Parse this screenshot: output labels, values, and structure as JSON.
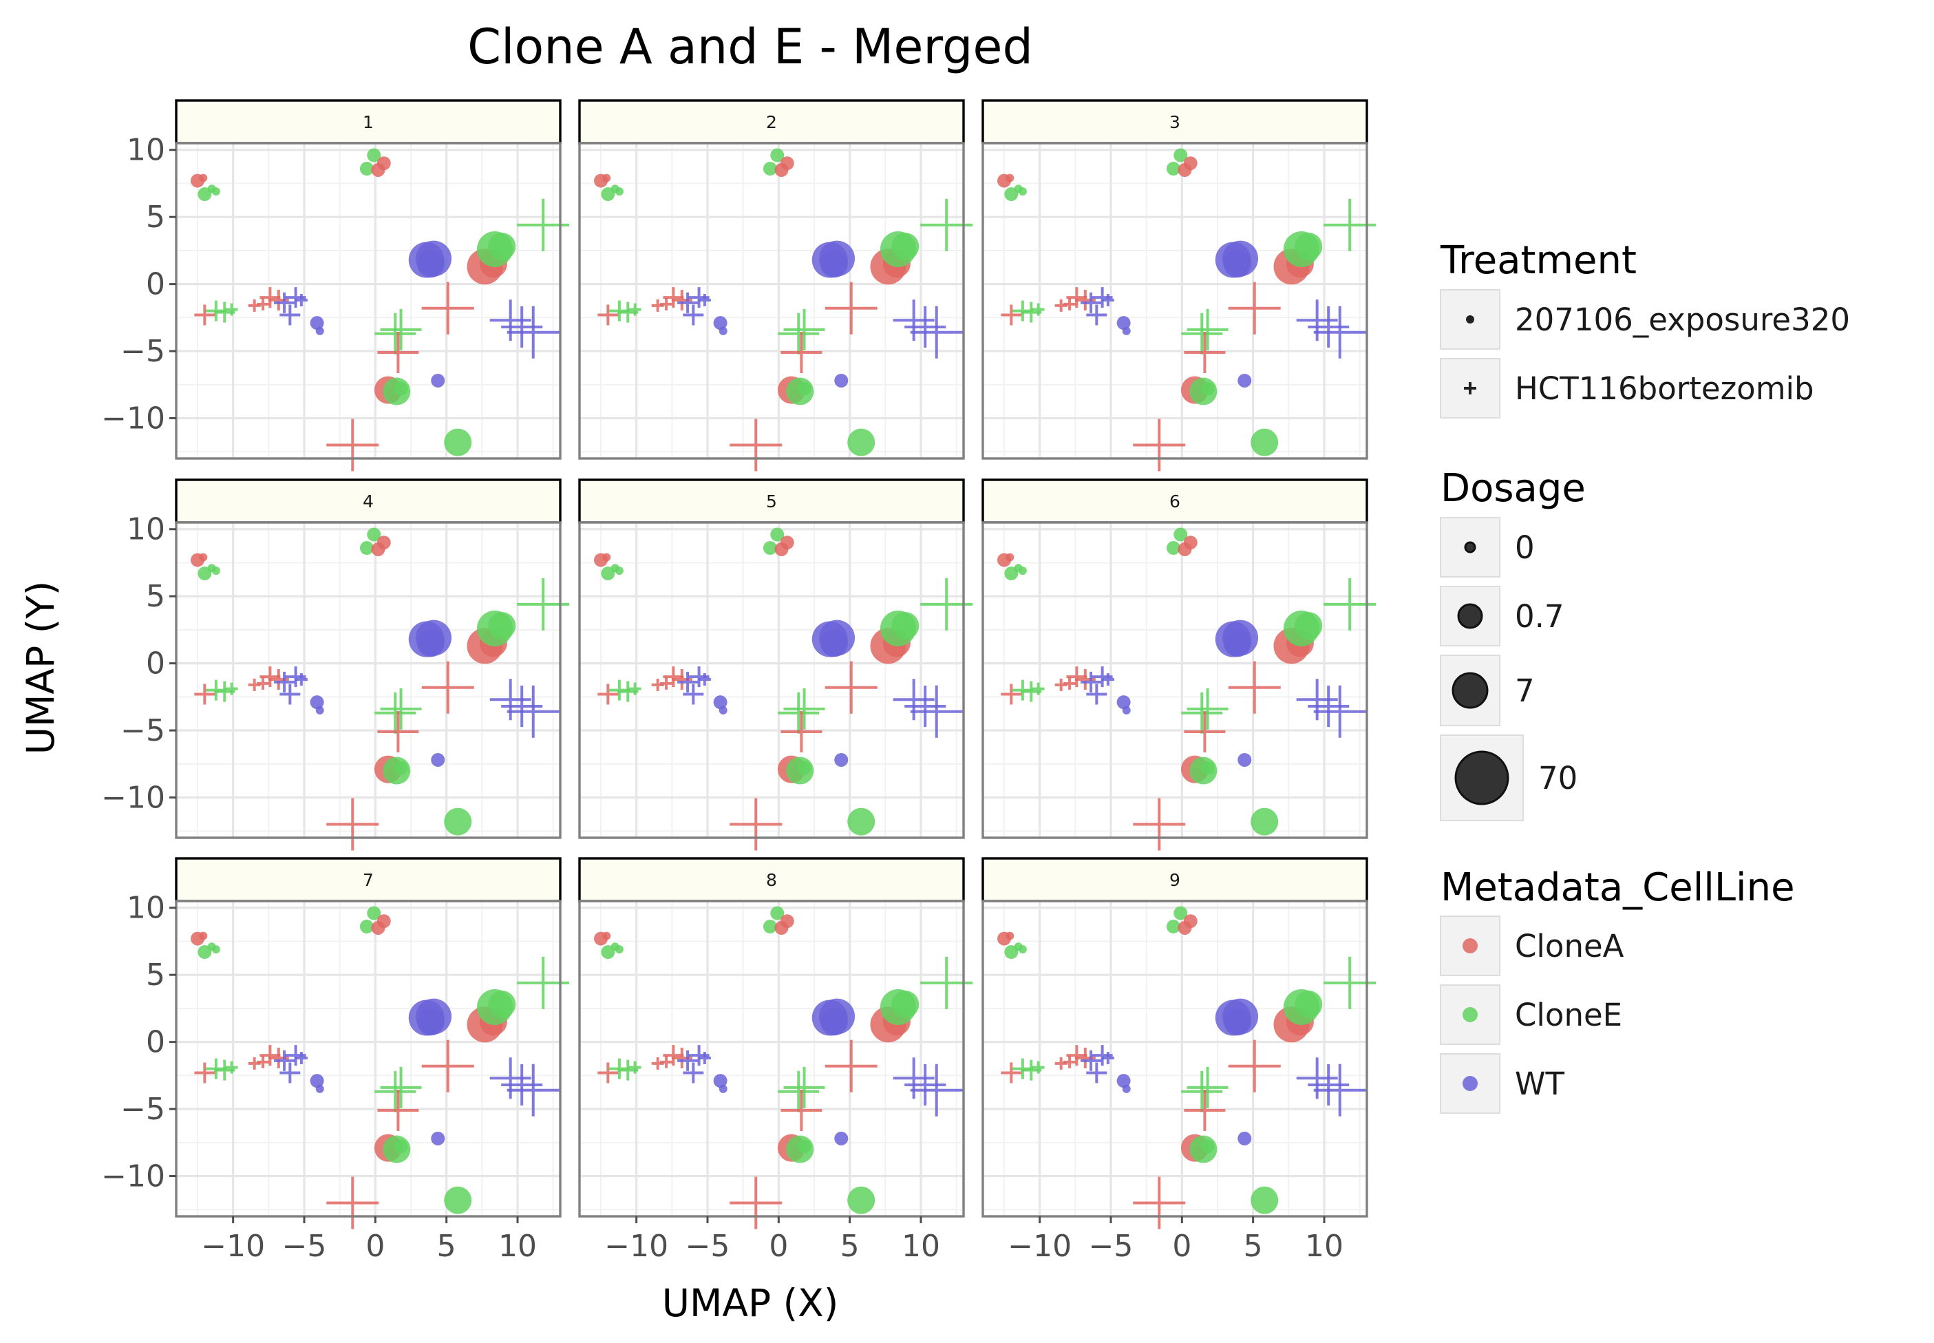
{
  "chart_data": {
    "type": "scatter",
    "title": "Clone A and E - Merged",
    "xlabel": "UMAP (X)",
    "ylabel": "UMAP (Y)",
    "xlim": [
      -14,
      13
    ],
    "ylim": [
      -13,
      10.5
    ],
    "xticks": [
      -10,
      -5,
      0,
      5,
      10
    ],
    "yticks": [
      10,
      5,
      0,
      -5,
      -10
    ],
    "xtick_labels": [
      "−10",
      "−5",
      "0",
      "5",
      "10"
    ],
    "ytick_labels": [
      "10",
      "5",
      "0",
      "−5",
      "−10"
    ],
    "grid": true,
    "facets": [
      "1",
      "2",
      "3",
      "4",
      "5",
      "6",
      "7",
      "8",
      "9"
    ],
    "legend_placement": "right",
    "legend": {
      "treatment": {
        "title": "Treatment",
        "items": [
          {
            "label": "207106_exposure320",
            "shape": "circle"
          },
          {
            "label": "HCT116bortezomib",
            "shape": "cross"
          }
        ]
      },
      "dosage": {
        "title": "Dosage",
        "items": [
          {
            "label": "0",
            "value": 0
          },
          {
            "label": "0.7",
            "value": 0.7
          },
          {
            "label": "7",
            "value": 7
          },
          {
            "label": "70",
            "value": 70
          }
        ]
      },
      "cellline": {
        "title": "Metadata_CellLine",
        "items": [
          {
            "label": "CloneA",
            "color": "#e06660"
          },
          {
            "label": "CloneE",
            "color": "#5fd35f"
          },
          {
            "label": "WT",
            "color": "#6a62d8"
          }
        ]
      }
    },
    "colors": {
      "CloneA": "#e06660",
      "CloneE": "#5fd35f",
      "WT": "#6a62d8"
    },
    "points": [
      {
        "x": -12.5,
        "y": 7.7,
        "line": "CloneA",
        "treatment": "207106_exposure320",
        "dose": 0.7
      },
      {
        "x": -12.1,
        "y": 7.9,
        "line": "CloneA",
        "treatment": "207106_exposure320",
        "dose": 0
      },
      {
        "x": -12.0,
        "y": 6.7,
        "line": "CloneE",
        "treatment": "207106_exposure320",
        "dose": 0.7
      },
      {
        "x": -11.5,
        "y": 7.1,
        "line": "CloneE",
        "treatment": "207106_exposure320",
        "dose": 0
      },
      {
        "x": -11.2,
        "y": 6.9,
        "line": "CloneE",
        "treatment": "207106_exposure320",
        "dose": 0
      },
      {
        "x": -0.6,
        "y": 8.6,
        "line": "CloneE",
        "treatment": "207106_exposure320",
        "dose": 0.7
      },
      {
        "x": -0.1,
        "y": 9.6,
        "line": "CloneE",
        "treatment": "207106_exposure320",
        "dose": 0.7
      },
      {
        "x": 0.2,
        "y": 8.5,
        "line": "CloneA",
        "treatment": "207106_exposure320",
        "dose": 0.7
      },
      {
        "x": 0.6,
        "y": 9.0,
        "line": "CloneA",
        "treatment": "207106_exposure320",
        "dose": 0.7
      },
      {
        "x": 3.6,
        "y": 1.8,
        "line": "WT",
        "treatment": "207106_exposure320",
        "dose": 70
      },
      {
        "x": 4.1,
        "y": 1.9,
        "line": "WT",
        "treatment": "207106_exposure320",
        "dose": 70
      },
      {
        "x": 3.9,
        "y": 1.5,
        "line": "WT",
        "treatment": "207106_exposure320",
        "dose": 7
      },
      {
        "x": 7.7,
        "y": 1.3,
        "line": "CloneA",
        "treatment": "207106_exposure320",
        "dose": 70
      },
      {
        "x": 8.3,
        "y": 1.5,
        "line": "CloneA",
        "treatment": "207106_exposure320",
        "dose": 7
      },
      {
        "x": 8.4,
        "y": 2.6,
        "line": "CloneE",
        "treatment": "207106_exposure320",
        "dose": 70
      },
      {
        "x": 8.9,
        "y": 2.8,
        "line": "CloneE",
        "treatment": "207106_exposure320",
        "dose": 7
      },
      {
        "x": -4.1,
        "y": -2.9,
        "line": "WT",
        "treatment": "207106_exposure320",
        "dose": 0.7
      },
      {
        "x": -3.9,
        "y": -3.5,
        "line": "WT",
        "treatment": "207106_exposure320",
        "dose": 0
      },
      {
        "x": 0.9,
        "y": -7.9,
        "line": "CloneA",
        "treatment": "207106_exposure320",
        "dose": 7
      },
      {
        "x": 1.2,
        "y": -8.3,
        "line": "CloneA",
        "treatment": "207106_exposure320",
        "dose": 0.7
      },
      {
        "x": 1.5,
        "y": -8.0,
        "line": "CloneE",
        "treatment": "207106_exposure320",
        "dose": 7
      },
      {
        "x": 1.8,
        "y": -7.8,
        "line": "CloneE",
        "treatment": "207106_exposure320",
        "dose": 0.7
      },
      {
        "x": 4.4,
        "y": -7.2,
        "line": "WT",
        "treatment": "207106_exposure320",
        "dose": 0.7
      },
      {
        "x": 5.8,
        "y": -11.8,
        "line": "CloneE",
        "treatment": "207106_exposure320",
        "dose": 7
      },
      {
        "x": -12.0,
        "y": -2.3,
        "line": "CloneA",
        "treatment": "HCT116bortezomib",
        "dose": 0.7
      },
      {
        "x": -11.2,
        "y": -2.0,
        "line": "CloneE",
        "treatment": "HCT116bortezomib",
        "dose": 0.7
      },
      {
        "x": -10.6,
        "y": -2.1,
        "line": "CloneE",
        "treatment": "HCT116bortezomib",
        "dose": 0.7
      },
      {
        "x": -10.1,
        "y": -1.9,
        "line": "CloneE",
        "treatment": "HCT116bortezomib",
        "dose": 0
      },
      {
        "x": -8.5,
        "y": -1.6,
        "line": "CloneA",
        "treatment": "HCT116bortezomib",
        "dose": 0
      },
      {
        "x": -7.9,
        "y": -1.5,
        "line": "CloneA",
        "treatment": "HCT116bortezomib",
        "dose": 0
      },
      {
        "x": -7.4,
        "y": -1.0,
        "line": "CloneA",
        "treatment": "HCT116bortezomib",
        "dose": 0.7
      },
      {
        "x": -6.8,
        "y": -1.2,
        "line": "CloneA",
        "treatment": "HCT116bortezomib",
        "dose": 0.7
      },
      {
        "x": -6.4,
        "y": -1.4,
        "line": "WT",
        "treatment": "HCT116bortezomib",
        "dose": 0.7
      },
      {
        "x": -6.0,
        "y": -2.3,
        "line": "WT",
        "treatment": "HCT116bortezomib",
        "dose": 0.7
      },
      {
        "x": -5.6,
        "y": -1.0,
        "line": "WT",
        "treatment": "HCT116bortezomib",
        "dose": 0.7
      },
      {
        "x": -5.2,
        "y": -1.2,
        "line": "WT",
        "treatment": "HCT116bortezomib",
        "dose": 0
      },
      {
        "x": 1.4,
        "y": -3.7,
        "line": "CloneE",
        "treatment": "HCT116bortezomib",
        "dose": 7
      },
      {
        "x": 1.8,
        "y": -3.4,
        "line": "CloneE",
        "treatment": "HCT116bortezomib",
        "dose": 7
      },
      {
        "x": 1.6,
        "y": -5.1,
        "line": "CloneA",
        "treatment": "HCT116bortezomib",
        "dose": 7
      },
      {
        "x": 5.1,
        "y": -1.8,
        "line": "CloneA",
        "treatment": "HCT116bortezomib",
        "dose": 70
      },
      {
        "x": 9.5,
        "y": -2.7,
        "line": "WT",
        "treatment": "HCT116bortezomib",
        "dose": 7
      },
      {
        "x": 10.3,
        "y": -3.2,
        "line": "WT",
        "treatment": "HCT116bortezomib",
        "dose": 7
      },
      {
        "x": 11.1,
        "y": -3.6,
        "line": "WT",
        "treatment": "HCT116bortezomib",
        "dose": 70
      },
      {
        "x": 11.8,
        "y": 4.4,
        "line": "CloneE",
        "treatment": "HCT116bortezomib",
        "dose": 70
      },
      {
        "x": -1.6,
        "y": -12.0,
        "line": "CloneA",
        "treatment": "HCT116bortezomib",
        "dose": 70
      }
    ]
  }
}
